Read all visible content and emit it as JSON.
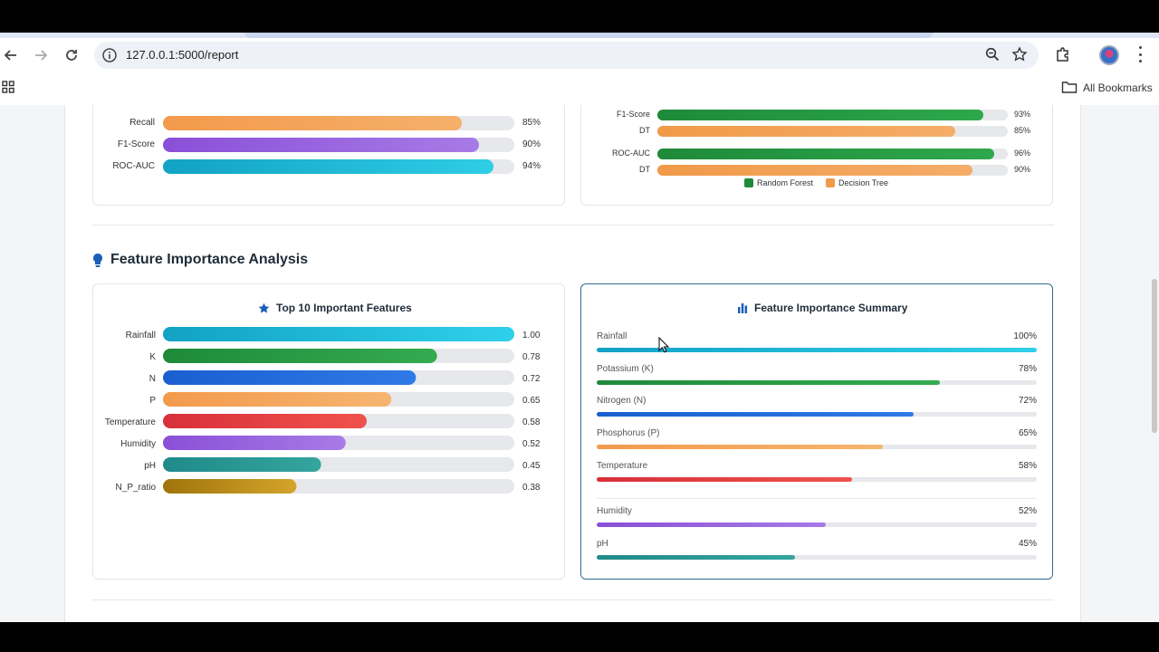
{
  "browser": {
    "url": "127.0.0.1:5000/report",
    "bookmarks_label": "All Bookmarks"
  },
  "top_left_card": {
    "rows": [
      {
        "label": "Recall",
        "value": 85,
        "value_text": "85%",
        "colors": [
          "#f39a4c",
          "#f5b06b"
        ]
      },
      {
        "label": "F1-Score",
        "value": 90,
        "value_text": "90%",
        "colors": [
          "#8a4fd8",
          "#a77be6"
        ]
      },
      {
        "label": "ROC-AUC",
        "value": 94,
        "value_text": "94%",
        "colors": [
          "#12a2c4",
          "#2fcde6"
        ]
      }
    ]
  },
  "top_right_card": {
    "rows": [
      {
        "label": "F1-Score",
        "value": 93,
        "value_text": "93%",
        "colors": [
          "#1e8a3a",
          "#2ea84c"
        ]
      },
      {
        "label": "DT",
        "value": 85,
        "value_text": "85%",
        "colors": [
          "#f19a48",
          "#f4ad69"
        ]
      },
      {
        "label": "ROC-AUC",
        "value": 96,
        "value_text": "96%",
        "colors": [
          "#1e8a3a",
          "#2ea84c"
        ]
      },
      {
        "label": "DT",
        "value": 90,
        "value_text": "90%",
        "colors": [
          "#f19a48",
          "#f4ad69"
        ]
      }
    ],
    "legend": [
      {
        "label": "Random Forest",
        "color": "#1e8a3a"
      },
      {
        "label": "Decision Tree",
        "color": "#f19a48"
      }
    ]
  },
  "section": {
    "title": "Feature Importance Analysis"
  },
  "top_features": {
    "title": "Top 10 Important Features",
    "chart_data": {
      "type": "bar",
      "categories": [
        "Rainfall",
        "K",
        "N",
        "P",
        "Temperature",
        "Humidity",
        "pH",
        "N_P_ratio"
      ],
      "values": [
        1.0,
        0.78,
        0.72,
        0.65,
        0.58,
        0.52,
        0.45,
        0.38
      ],
      "value_labels": [
        "1.00",
        "0.78",
        "0.72",
        "0.65",
        "0.58",
        "0.52",
        "0.45",
        "0.38"
      ],
      "title": "Top 10 Important Features",
      "xlim": [
        0,
        1
      ],
      "colors": [
        [
          "#12a2c4",
          "#2fd0ea"
        ],
        [
          "#1e8a3a",
          "#34ab50"
        ],
        [
          "#1a5fd0",
          "#2f7ae6"
        ],
        [
          "#f39a4c",
          "#f6b56f"
        ],
        [
          "#d8303a",
          "#f0524d"
        ],
        [
          "#8a4fd8",
          "#a77be6"
        ],
        [
          "#1f8a8a",
          "#35a59e"
        ],
        [
          "#a0740c",
          "#d4a42a"
        ]
      ]
    }
  },
  "summary": {
    "title": "Feature Importance Summary",
    "items": [
      {
        "label": "Rainfall",
        "value": 100,
        "value_text": "100%",
        "colors": [
          "#12a2c4",
          "#2fd0ea"
        ]
      },
      {
        "label": "Potassium (K)",
        "value": 78,
        "value_text": "78%",
        "colors": [
          "#1e8a3a",
          "#34ab50"
        ]
      },
      {
        "label": "Nitrogen (N)",
        "value": 72,
        "value_text": "72%",
        "colors": [
          "#1a5fd0",
          "#2f7ae6"
        ]
      },
      {
        "label": "Phosphorus (P)",
        "value": 65,
        "value_text": "65%",
        "colors": [
          "#f39a4c",
          "#f6b56f"
        ]
      },
      {
        "label": "Temperature",
        "value": 58,
        "value_text": "58%",
        "colors": [
          "#d8303a",
          "#f0524d"
        ]
      },
      {
        "label": "Humidity",
        "value": 52,
        "value_text": "52%",
        "colors": [
          "#8a4fd8",
          "#a77be6"
        ]
      },
      {
        "label": "pH",
        "value": 45,
        "value_text": "45%",
        "colors": [
          "#1f8a8a",
          "#35a59e"
        ]
      }
    ]
  }
}
